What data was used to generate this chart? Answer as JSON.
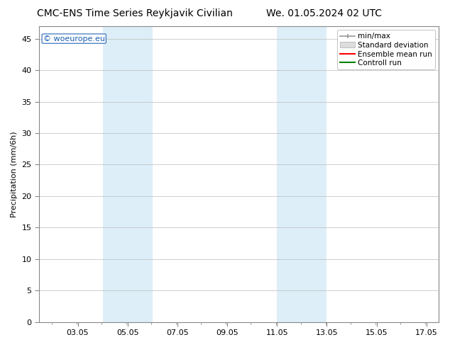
{
  "title_left": "CMC-ENS Time Series Reykjavik Civilian",
  "title_right": "We. 01.05.2024 02 UTC",
  "ylabel": "Precipitation (mm/6h)",
  "watermark": "© woeurope.eu",
  "xlim_left": 1.5,
  "xlim_right": 17.55,
  "ylim_bottom": 0,
  "ylim_top": 47,
  "yticks": [
    0,
    5,
    10,
    15,
    20,
    25,
    30,
    35,
    40,
    45
  ],
  "xtick_labels": [
    "03.05",
    "05.05",
    "07.05",
    "09.05",
    "11.05",
    "13.05",
    "15.05",
    "17.05"
  ],
  "xtick_positions": [
    3.05,
    5.05,
    7.05,
    9.05,
    11.05,
    13.05,
    15.05,
    17.05
  ],
  "shaded_regions": [
    {
      "x_start": 4.05,
      "x_end": 6.05,
      "color": "#ddeef8"
    },
    {
      "x_start": 11.05,
      "x_end": 13.05,
      "color": "#ddeef8"
    }
  ],
  "legend_items": [
    {
      "label": "min/max",
      "color": "#999999"
    },
    {
      "label": "Standard deviation",
      "color": "#cccccc"
    },
    {
      "label": "Ensemble mean run",
      "color": "red"
    },
    {
      "label": "Controll run",
      "color": "green"
    }
  ],
  "bg_color": "#ffffff",
  "plot_bg_color": "#ffffff",
  "grid_color": "#bbbbbb",
  "title_fontsize": 10,
  "tick_fontsize": 8,
  "ylabel_fontsize": 8,
  "legend_fontsize": 7.5
}
